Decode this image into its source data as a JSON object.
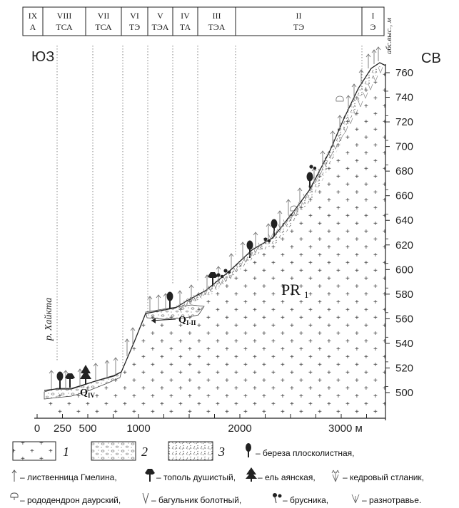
{
  "header": {
    "altitude_unit": "абс.выс., м",
    "zones": [
      {
        "roman": "IX",
        "code": "А"
      },
      {
        "roman": "VIII",
        "code": "ТСА"
      },
      {
        "roman": "VII",
        "code": "ТСА"
      },
      {
        "roman": "VI",
        "code": "ТЭ"
      },
      {
        "roman": "V",
        "code": "ТЭА"
      },
      {
        "roman": "IV",
        "code": "ТА"
      },
      {
        "roman": "III",
        "code": "ТЭА"
      },
      {
        "roman": "II",
        "code": "ТЭ"
      },
      {
        "roman": "I",
        "code": "Э"
      }
    ]
  },
  "profile": {
    "dir_left": "ЮЗ",
    "dir_right": "СВ",
    "river_label": "р. Хайкта",
    "label_qiv": "Q",
    "label_qiv_sub": "IV",
    "label_qi": "Q",
    "label_qi_sub": "I-II",
    "label_pr": "PR",
    "label_pr_sub": "1"
  },
  "chart_data": {
    "type": "profile",
    "y_ticks": [
      500,
      520,
      540,
      560,
      580,
      600,
      620,
      640,
      660,
      680,
      700,
      720,
      740,
      760
    ],
    "x_tick_labels": [
      "0",
      "250",
      "500",
      "1000",
      "2000",
      "3000 м"
    ],
    "x_tick_values": [
      0,
      250,
      500,
      1000,
      2000,
      3000
    ],
    "ylim": [
      485,
      770
    ],
    "xlim": [
      -40,
      3400
    ]
  },
  "legend": {
    "items": [
      {
        "num": "1"
      },
      {
        "num": "2"
      },
      {
        "num": "3"
      }
    ],
    "birch": "– береза плосколистная,",
    "larch": "– лиственница Гмелина,",
    "poplar": "– тополь душистый,",
    "spruce": "– ель  аянская,",
    "pine": "– кедровый стланик,",
    "rhodo": "– рододендрон даурский,",
    "ledum": "– багульник болотный,",
    "cowberry": "– брусника,",
    "herbs": "– разнотравье."
  }
}
